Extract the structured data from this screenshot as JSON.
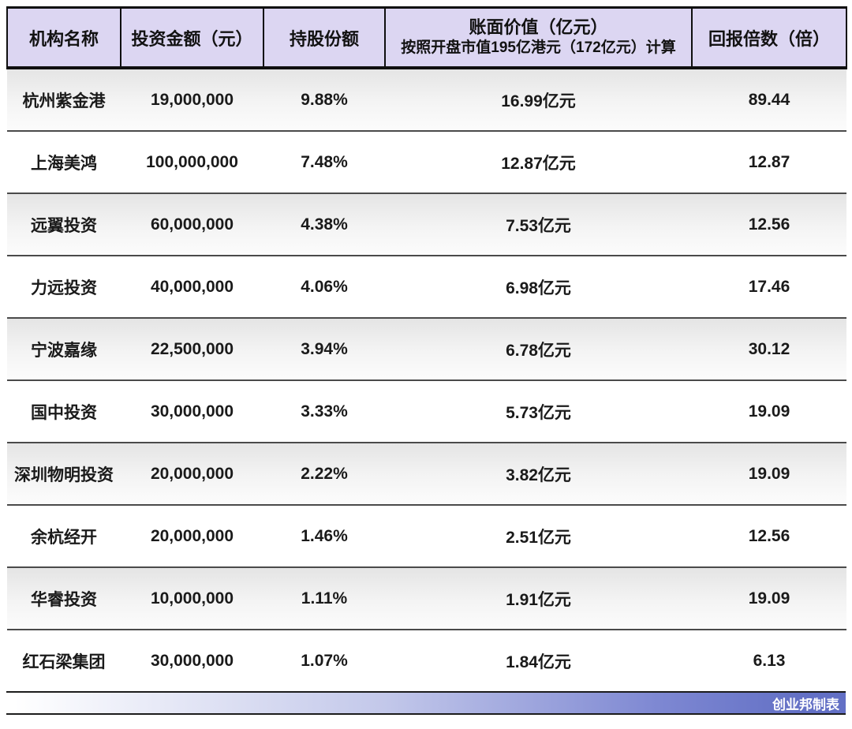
{
  "chart_data": {
    "type": "table",
    "headers": {
      "institution": "机构名称",
      "investment": "投资金额（元）",
      "share": "持股份额",
      "book_value": {
        "line1": "账面价值（亿元）",
        "line2": "按照开盘市值195亿港元（172亿元）计算"
      },
      "return_multiple": "回报倍数（倍）"
    },
    "rows": [
      {
        "institution": "杭州紫金港",
        "investment": "19,000,000",
        "share": "9.88%",
        "book_value": "16.99亿元",
        "return_multiple": "89.44"
      },
      {
        "institution": "上海美鸿",
        "investment": "100,000,000",
        "share": "7.48%",
        "book_value": "12.87亿元",
        "return_multiple": "12.87"
      },
      {
        "institution": "远翼投资",
        "investment": "60,000,000",
        "share": "4.38%",
        "book_value": "7.53亿元",
        "return_multiple": "12.56"
      },
      {
        "institution": "力远投资",
        "investment": "40,000,000",
        "share": "4.06%",
        "book_value": "6.98亿元",
        "return_multiple": "17.46"
      },
      {
        "institution": "宁波嘉缘",
        "investment": "22,500,000",
        "share": "3.94%",
        "book_value": "6.78亿元",
        "return_multiple": "30.12"
      },
      {
        "institution": "国中投资",
        "investment": "30,000,000",
        "share": "3.33%",
        "book_value": "5.73亿元",
        "return_multiple": "19.09"
      },
      {
        "institution": "深圳物明投资",
        "investment": "20,000,000",
        "share": "2.22%",
        "book_value": "3.82亿元",
        "return_multiple": "19.09"
      },
      {
        "institution": "余杭经开",
        "investment": "20,000,000",
        "share": "1.46%",
        "book_value": "2.51亿元",
        "return_multiple": "12.56"
      },
      {
        "institution": "华睿投资",
        "investment": "10,000,000",
        "share": "1.11%",
        "book_value": "1.91亿元",
        "return_multiple": "19.09"
      },
      {
        "institution": "红石梁集团",
        "investment": "30,000,000",
        "share": "1.07%",
        "book_value": "1.84亿元",
        "return_multiple": "6.13"
      }
    ]
  },
  "footer": {
    "credit": "创业邦制表"
  },
  "colors": {
    "header_bg": "#dcd6f2",
    "row_stripe_top": "#e4e4e4",
    "row_separator": "#4a4a4a",
    "header_border": "#0f0f0f",
    "footer_gradient_end": "#6370c5",
    "footer_text": "#ffffff"
  }
}
